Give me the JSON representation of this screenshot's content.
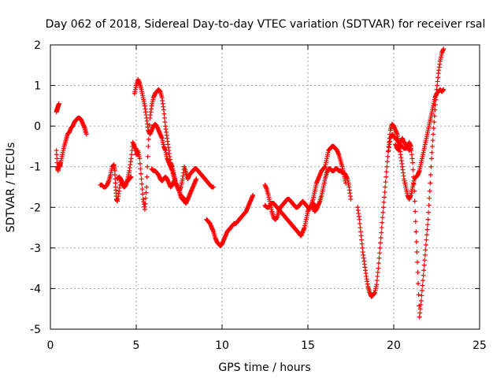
{
  "chart_data": {
    "type": "scatter",
    "title": "Day 062 of 2018, Sidereal Day-to-day VTEC variation (SDTVAR) for receiver rsal",
    "xlabel": "GPS time / hours",
    "ylabel": "SDTVAR / TECUs",
    "xlim": [
      0,
      25
    ],
    "ylim": [
      -5,
      2
    ],
    "xticks": [
      "0",
      "5",
      "10",
      "15",
      "20",
      "25"
    ],
    "yticks": [
      "-5",
      "-4",
      "-3",
      "-2",
      "-1",
      "0",
      "1",
      "2"
    ],
    "grid": true,
    "marker": "+",
    "color": "#ff0000",
    "series": [
      {
        "name": "seg1",
        "x": [
          0.35,
          0.4,
          0.45,
          0.5,
          0.55,
          0.6,
          0.7,
          0.8,
          0.9,
          1.0,
          1.1,
          1.2,
          1.3,
          1.4,
          1.5,
          1.6,
          1.7,
          1.8,
          1.9,
          2.0,
          2.1
        ],
        "y": [
          -0.6,
          -1.0,
          -1.1,
          -0.9,
          -1.0,
          -0.9,
          -0.7,
          -0.5,
          -0.35,
          -0.2,
          -0.15,
          -0.05,
          0.0,
          0.1,
          0.15,
          0.2,
          0.2,
          0.15,
          0.05,
          -0.05,
          -0.2
        ]
      },
      {
        "name": "seg2",
        "x": [
          0.35,
          0.38,
          0.42,
          0.46,
          0.5
        ],
        "y": [
          0.35,
          0.4,
          0.45,
          0.5,
          0.55
        ]
      },
      {
        "name": "seg3",
        "x": [
          2.9,
          3.0,
          3.1,
          3.2,
          3.3,
          3.4,
          3.5,
          3.6,
          3.7,
          3.75,
          3.8,
          3.85,
          3.9,
          4.0,
          4.1,
          4.2,
          4.3,
          4.4,
          4.5,
          4.6,
          4.7,
          4.8,
          4.9,
          5.0,
          5.1
        ],
        "y": [
          -1.45,
          -1.45,
          -1.5,
          -1.5,
          -1.45,
          -1.35,
          -1.2,
          -1.0,
          -0.95,
          -1.1,
          -1.5,
          -1.8,
          -1.85,
          -1.6,
          -1.3,
          -1.4,
          -1.5,
          -1.45,
          -1.3,
          -1.1,
          -0.8,
          -0.4,
          -0.5,
          -0.6,
          -0.7
        ]
      },
      {
        "name": "seg4",
        "x": [
          3.9,
          4.0,
          4.1,
          4.2,
          4.3,
          4.4,
          4.5,
          4.6,
          4.7
        ],
        "y": [
          -1.3,
          -1.25,
          -1.3,
          -1.45,
          -1.5,
          -1.4,
          -1.35,
          -1.3,
          -1.25
        ]
      },
      {
        "name": "seg5",
        "x": [
          4.9,
          5.0,
          5.1,
          5.2,
          5.3,
          5.4,
          5.5,
          5.6,
          5.7,
          5.8,
          5.9,
          6.0,
          6.1,
          6.2,
          6.3,
          6.4,
          6.5,
          6.6,
          6.7,
          6.8,
          6.9,
          7.0,
          7.1,
          7.2,
          7.3,
          7.4,
          7.5,
          7.6,
          7.7,
          7.8,
          7.9,
          8.0
        ],
        "y": [
          0.8,
          1.0,
          1.15,
          1.05,
          0.9,
          0.7,
          0.5,
          0.2,
          -0.1,
          -0.2,
          -0.1,
          0.0,
          0.05,
          0.0,
          -0.1,
          -0.2,
          -0.3,
          -0.5,
          -0.6,
          -0.8,
          -0.9,
          -1.0,
          -1.1,
          -1.25,
          -1.4,
          -1.5,
          -1.6,
          -1.75,
          -1.8,
          -1.85,
          -1.9,
          -1.8
        ]
      },
      {
        "name": "seg6",
        "x": [
          5.0,
          5.1,
          5.2,
          5.3,
          5.4,
          5.5,
          5.6,
          5.7,
          5.8,
          5.9,
          6.0,
          6.1,
          6.2,
          6.3,
          6.4,
          6.5,
          6.6,
          6.7,
          6.8,
          6.9,
          7.0,
          7.1,
          7.2,
          7.3,
          7.4,
          7.5,
          7.6,
          7.7,
          7.8,
          7.9,
          8.0
        ],
        "y": [
          -0.7,
          -0.6,
          -0.8,
          -1.3,
          -1.8,
          -2.05,
          -1.5,
          -0.5,
          0.2,
          0.5,
          0.7,
          0.8,
          0.85,
          0.9,
          0.85,
          0.7,
          0.4,
          0.0,
          -0.3,
          -0.6,
          -0.9,
          -1.0,
          -1.2,
          -1.4,
          -1.5,
          -1.6,
          -1.5,
          -1.3,
          -1.0,
          -1.15,
          -1.3
        ]
      },
      {
        "name": "seg7",
        "x": [
          5.9,
          6.0,
          6.1,
          6.2,
          6.3,
          6.4,
          6.5,
          6.6,
          6.7,
          6.8,
          6.9,
          7.0,
          7.1,
          7.2
        ],
        "y": [
          -1.05,
          -1.1,
          -1.1,
          -1.15,
          -1.2,
          -1.3,
          -1.35,
          -1.3,
          -1.25,
          -1.3,
          -1.4,
          -1.5,
          -1.45,
          -1.35
        ]
      },
      {
        "name": "seg8",
        "x": [
          8.0,
          8.1,
          8.2,
          8.3,
          8.4,
          8.5,
          8.6,
          8.7,
          8.8,
          8.9,
          9.0,
          9.1,
          9.2,
          9.3,
          9.4,
          9.5
        ],
        "y": [
          -1.3,
          -1.2,
          -1.15,
          -1.1,
          -1.05,
          -1.05,
          -1.1,
          -1.15,
          -1.2,
          -1.25,
          -1.3,
          -1.35,
          -1.4,
          -1.45,
          -1.5,
          -1.5
        ]
      },
      {
        "name": "seg9",
        "x": [
          7.6,
          7.7,
          7.8,
          7.9,
          8.0,
          8.1,
          8.2,
          8.3,
          8.4,
          8.5
        ],
        "y": [
          -1.7,
          -1.75,
          -1.8,
          -1.85,
          -1.8,
          -1.7,
          -1.6,
          -1.5,
          -1.4,
          -1.3
        ]
      },
      {
        "name": "seg10",
        "x": [
          9.1,
          9.2,
          9.3,
          9.4,
          9.5,
          9.6,
          9.7,
          9.8,
          9.9,
          10.0,
          10.1,
          10.2,
          10.3,
          10.4,
          10.5,
          10.6,
          10.7,
          10.8,
          10.9,
          11.0,
          11.1,
          11.2,
          11.3,
          11.4,
          11.5,
          11.6,
          11.7,
          11.8
        ],
        "y": [
          -2.3,
          -2.35,
          -2.4,
          -2.5,
          -2.6,
          -2.75,
          -2.85,
          -2.9,
          -2.95,
          -2.9,
          -2.8,
          -2.7,
          -2.6,
          -2.55,
          -2.5,
          -2.45,
          -2.4,
          -2.4,
          -2.35,
          -2.3,
          -2.25,
          -2.2,
          -2.15,
          -2.1,
          -2.0,
          -1.9,
          -1.8,
          -1.7
        ]
      },
      {
        "name": "seg11",
        "x": [
          12.5,
          12.6,
          12.7,
          12.8,
          12.9,
          13.0,
          13.1,
          13.2,
          13.3,
          13.4,
          13.5,
          13.6,
          13.7,
          13.8,
          13.9,
          14.0,
          14.1,
          14.2,
          14.3,
          14.4,
          14.5,
          14.6,
          14.7,
          14.8,
          14.9,
          15.0,
          15.1,
          15.2,
          15.3,
          15.4,
          15.5,
          15.6,
          15.7,
          15.8,
          15.9,
          16.0,
          16.1,
          16.2,
          16.3,
          16.4,
          16.5,
          16.6,
          16.7,
          16.8,
          16.9,
          17.0,
          17.1,
          17.2
        ],
        "y": [
          -1.45,
          -1.55,
          -1.7,
          -1.9,
          -2.1,
          -2.25,
          -2.3,
          -2.25,
          -2.1,
          -2.0,
          -1.95,
          -1.9,
          -1.85,
          -1.8,
          -1.8,
          -1.85,
          -1.9,
          -1.95,
          -2.0,
          -2.0,
          -1.95,
          -1.9,
          -1.85,
          -1.9,
          -1.95,
          -2.0,
          -2.05,
          -1.95,
          -1.8,
          -1.6,
          -1.4,
          -1.3,
          -1.2,
          -1.1,
          -1.05,
          -1.0,
          -0.8,
          -0.6,
          -0.55,
          -0.5,
          -0.5,
          -0.55,
          -0.6,
          -0.7,
          -0.85,
          -1.0,
          -1.2,
          -1.4
        ]
      },
      {
        "name": "seg12",
        "x": [
          12.5,
          12.6,
          12.7,
          12.8,
          12.9,
          13.0,
          13.1,
          13.2,
          13.3,
          13.4,
          13.5,
          13.6,
          13.7,
          13.8,
          13.9,
          14.0,
          14.1,
          14.2,
          14.3,
          14.4,
          14.5,
          14.6,
          14.7,
          14.8,
          14.9,
          15.0,
          15.1,
          15.2,
          15.3,
          15.4,
          15.5
        ],
        "y": [
          -1.95,
          -2.0,
          -2.0,
          -1.95,
          -1.9,
          -1.9,
          -1.95,
          -2.0,
          -2.05,
          -2.1,
          -2.15,
          -2.2,
          -2.25,
          -2.3,
          -2.35,
          -2.4,
          -2.45,
          -2.5,
          -2.55,
          -2.6,
          -2.65,
          -2.7,
          -2.6,
          -2.5,
          -2.3,
          -2.1,
          -2.0,
          -1.95,
          -1.9,
          -1.95,
          -2.0
        ]
      },
      {
        "name": "seg13",
        "x": [
          15.3,
          15.4,
          15.5,
          15.6,
          15.7,
          15.8,
          15.9,
          16.0,
          16.1,
          16.2,
          16.3,
          16.4,
          16.5,
          16.6,
          16.7,
          16.8,
          16.9,
          17.0,
          17.1,
          17.2,
          17.3,
          17.4,
          17.5
        ],
        "y": [
          -2.0,
          -2.1,
          -2.05,
          -1.95,
          -1.85,
          -1.7,
          -1.5,
          -1.3,
          -1.15,
          -1.05,
          -1.05,
          -1.1,
          -1.1,
          -1.05,
          -1.05,
          -1.1,
          -1.1,
          -1.15,
          -1.15,
          -1.2,
          -1.3,
          -1.5,
          -1.8
        ]
      },
      {
        "name": "seg14",
        "x": [
          17.9,
          18.0,
          18.1,
          18.2,
          18.3,
          18.4,
          18.5,
          18.6,
          18.7,
          18.8,
          18.9,
          19.0,
          19.1,
          19.2,
          19.3,
          19.4,
          19.5,
          19.6,
          19.7,
          19.8,
          19.9,
          20.0,
          20.1,
          20.2,
          20.3,
          20.4,
          20.5,
          20.6,
          20.7,
          20.8,
          20.9,
          21.0,
          21.1,
          21.2,
          21.3,
          21.4,
          21.5,
          21.6,
          21.7,
          21.8,
          21.9,
          22.0,
          22.1,
          22.2,
          22.3,
          22.4,
          22.5,
          22.6,
          22.7,
          22.8,
          22.9
        ],
        "y": [
          -2.0,
          -2.3,
          -2.7,
          -3.1,
          -3.4,
          -3.7,
          -3.95,
          -4.1,
          -4.2,
          -4.15,
          -4.1,
          -3.9,
          -3.5,
          -3.0,
          -2.5,
          -2.0,
          -1.5,
          -1.0,
          -0.5,
          -0.1,
          0.05,
          0.0,
          -0.1,
          -0.2,
          -0.4,
          -0.7,
          -1.0,
          -1.3,
          -1.5,
          -1.7,
          -1.8,
          -1.7,
          -1.5,
          -1.3,
          -1.25,
          -1.2,
          -1.1,
          -0.9,
          -0.7,
          -0.5,
          -0.3,
          -0.1,
          0.1,
          0.3,
          0.5,
          0.7,
          0.8,
          0.85,
          0.9,
          0.85,
          0.9
        ]
      },
      {
        "name": "seg15",
        "x": [
          19.7,
          19.8,
          19.9,
          20.0,
          20.1,
          20.2,
          20.3,
          20.4,
          20.5,
          20.6,
          20.7,
          20.8,
          20.9,
          21.0,
          21.1,
          21.2,
          21.3,
          21.4,
          21.5,
          21.6,
          21.7,
          21.8,
          21.9,
          22.0,
          22.1,
          22.2,
          22.3,
          22.4,
          22.5,
          22.6,
          22.7,
          22.8,
          22.9
        ],
        "y": [
          -0.6,
          -0.3,
          -0.2,
          -0.25,
          -0.3,
          -0.35,
          -0.4,
          -0.5,
          -0.5,
          -0.55,
          -0.55,
          -0.5,
          -0.4,
          -0.5,
          -0.9,
          -1.6,
          -2.6,
          -3.6,
          -4.7,
          -4.3,
          -3.8,
          -3.3,
          -2.8,
          -2.3,
          -1.6,
          -0.8,
          -0.2,
          0.4,
          0.9,
          1.3,
          1.6,
          1.8,
          1.9
        ]
      },
      {
        "name": "seg16",
        "x": [
          20.1,
          20.2,
          20.3,
          20.4,
          20.5,
          20.6,
          20.7,
          20.8,
          20.9,
          21.0
        ],
        "y": [
          -0.45,
          -0.55,
          -0.6,
          -0.4,
          -0.3,
          -0.4,
          -0.45,
          -0.5,
          -0.6,
          -0.55
        ]
      }
    ]
  }
}
